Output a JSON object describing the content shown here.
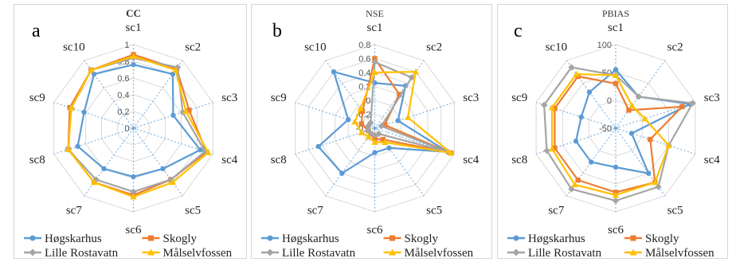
{
  "chart_data": [
    {
      "type": "radar",
      "panel_label": "a",
      "title": "CC",
      "categories": [
        "sc1",
        "sc2",
        "sc3",
        "sc4",
        "sc5",
        "sc6",
        "sc7",
        "sc8",
        "sc9",
        "sc10"
      ],
      "rlim": [
        0,
        1
      ],
      "ticks": [
        0,
        0.2,
        0.4,
        0.6,
        0.8,
        1
      ],
      "tick_labels": [
        "0",
        "0.2",
        "0.4",
        "0.6",
        "0.8",
        "1"
      ],
      "series": [
        {
          "name": "Høgskarhus",
          "color": "#5b9bd5",
          "values": [
            0.76,
            0.8,
            0.5,
            0.84,
            0.6,
            0.58,
            0.6,
            0.7,
            0.62,
            0.8
          ]
        },
        {
          "name": "Skogly",
          "color": "#ed7d31",
          "values": [
            0.88,
            0.88,
            0.7,
            0.92,
            0.76,
            0.8,
            0.8,
            0.82,
            0.8,
            0.86
          ]
        },
        {
          "name": "Lille Rostavatn",
          "color": "#a5a5a5",
          "values": [
            0.84,
            0.9,
            0.62,
            0.9,
            0.76,
            0.76,
            0.76,
            0.82,
            0.78,
            0.86
          ]
        },
        {
          "name": "Målselvfossen",
          "color": "#ffc000",
          "values": [
            0.86,
            0.86,
            0.66,
            0.94,
            0.8,
            0.82,
            0.8,
            0.82,
            0.78,
            0.86
          ]
        }
      ],
      "legend": "bottom"
    },
    {
      "type": "radar",
      "panel_label": "b",
      "title": "NSE",
      "categories": [
        "sc1",
        "sc2",
        "sc3",
        "sc4",
        "sc5",
        "sc6",
        "sc7",
        "sc8",
        "sc9",
        "sc10"
      ],
      "rlim": [
        -0.4,
        0.8
      ],
      "ticks": [
        -0.4,
        -0.2,
        0,
        0.2,
        0.4,
        0.6,
        0.8
      ],
      "tick_labels": [
        "-0.4",
        "-0.2",
        "0",
        "0.2",
        "0.4",
        "0.6",
        "0.8"
      ],
      "series": [
        {
          "name": "Høgskarhus",
          "color": "#5b9bd5",
          "values": [
            0.25,
            0.35,
            -0.05,
            0.7,
            -0.05,
            -0.05,
            0.4,
            0.45,
            0.0,
            0.6
          ]
        },
        {
          "name": "Skogly",
          "color": "#ed7d31",
          "values": [
            0.6,
            0.2,
            -0.25,
            0.75,
            -0.2,
            -0.25,
            -0.3,
            -0.3,
            -0.2,
            -0.1
          ]
        },
        {
          "name": "Lille Rostavatn",
          "color": "#a5a5a5",
          "values": [
            0.55,
            0.5,
            -0.3,
            0.7,
            -0.3,
            -0.3,
            -0.3,
            -0.3,
            -0.3,
            -0.3
          ]
        },
        {
          "name": "Målselvfossen",
          "color": "#ffc000",
          "values": [
            0.4,
            0.6,
            0.1,
            0.75,
            -0.15,
            -0.2,
            -0.25,
            -0.2,
            -0.1,
            -0.05
          ]
        }
      ],
      "legend": "bottom"
    },
    {
      "type": "radar",
      "panel_label": "c",
      "title": "PBIAS",
      "categories": [
        "sc1",
        "sc2",
        "sc3",
        "sc4",
        "sc5",
        "sc6",
        "sc7",
        "sc8",
        "sc9",
        "sc10"
      ],
      "rlim": [
        -50,
        100
      ],
      "ticks": [
        -50,
        0,
        50,
        100
      ],
      "tick_labels": [
        "-50",
        "0",
        "50",
        "100"
      ],
      "series": [
        {
          "name": "Høgskarhus",
          "color": "#5b9bd5",
          "values": [
            55,
            20,
            90,
            -20,
            50,
            20,
            25,
            25,
            15,
            30
          ]
        },
        {
          "name": "Skogly",
          "color": "#ed7d31",
          "values": [
            30,
            -10,
            75,
            15,
            70,
            65,
            65,
            65,
            65,
            65
          ]
        },
        {
          "name": "Lille Rostavatn",
          "color": "#a5a5a5",
          "values": [
            45,
            20,
            95,
            50,
            80,
            80,
            85,
            80,
            85,
            85
          ]
        },
        {
          "name": "Målselvfossen",
          "color": "#ffc000",
          "values": [
            45,
            0,
            5,
            50,
            70,
            70,
            75,
            70,
            70,
            70
          ]
        }
      ],
      "legend": "bottom"
    }
  ]
}
